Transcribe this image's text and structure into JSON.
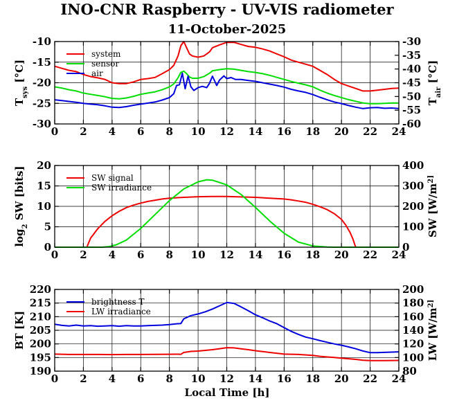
{
  "title": "INO-CNR Raspberry - UV-VIS radiometer",
  "subtitle": "11-October-2025",
  "xlabel": "Local Time [h]",
  "colors": {
    "red": "#ee0000",
    "green": "#00dd00",
    "blue": "#0000dd",
    "axis": "#000000"
  },
  "panels": [
    {
      "ylabel_left": "T_sys [°C]",
      "ylabel_right": "T_air [°C]",
      "legend": [
        "system",
        "sensor",
        "air"
      ]
    },
    {
      "ylabel_left": "log_2 SW [bits]",
      "ylabel_right": "SW [W/m^2]",
      "legend": [
        "SW signal",
        "SW irradiance"
      ]
    },
    {
      "ylabel_left": "BT [K]",
      "ylabel_right": "LW [W/m^2]",
      "legend": [
        "brightness T",
        "LW irradiance"
      ]
    }
  ],
  "chart_data": [
    {
      "type": "line",
      "xlim": [
        0,
        24
      ],
      "x_ticks": [
        0,
        2,
        4,
        6,
        8,
        10,
        12,
        14,
        16,
        18,
        20,
        22,
        24
      ],
      "ylim_left": [
        -30,
        -10
      ],
      "yticks_left": [
        -30,
        -25,
        -20,
        -15,
        -10
      ],
      "ylim_right": [
        -60,
        -30
      ],
      "yticks_right": [
        -60,
        -55,
        -50,
        -45,
        -40,
        -35,
        -30
      ],
      "grid": true,
      "legend_position": "top-left",
      "series": [
        {
          "name": "system",
          "axis": "left",
          "color": "#ee0000",
          "x": [
            0,
            0.5,
            1,
            1.5,
            2,
            2.5,
            3,
            3.5,
            4,
            4.5,
            5,
            5.5,
            6,
            6.5,
            7,
            7.5,
            8,
            8.3,
            8.6,
            8.8,
            9.0,
            9.2,
            9.4,
            9.6,
            10,
            10.4,
            10.8,
            11,
            11.5,
            12,
            12.5,
            13,
            13.5,
            14,
            14.5,
            15,
            15.5,
            16,
            16.5,
            17,
            17.5,
            18,
            18.5,
            19,
            19.5,
            20,
            20.5,
            21,
            21.5,
            22,
            22.5,
            23,
            23.5,
            24
          ],
          "y": [
            -16,
            -16.5,
            -17,
            -17.3,
            -18,
            -18.5,
            -18.8,
            -19.2,
            -20,
            -20.2,
            -20.2,
            -19.8,
            -19.2,
            -19,
            -18.7,
            -17.8,
            -16.8,
            -15.8,
            -13.5,
            -11,
            -10,
            -11.5,
            -13,
            -13.5,
            -13.8,
            -13.5,
            -12.5,
            -11.5,
            -10.8,
            -10.2,
            -10.2,
            -10.7,
            -11.2,
            -11.4,
            -11.8,
            -12.3,
            -13,
            -13.7,
            -14.5,
            -15,
            -15.5,
            -16,
            -17,
            -18,
            -19.2,
            -20.2,
            -20.8,
            -21.4,
            -22,
            -22,
            -21.8,
            -21.6,
            -21.4,
            -21.3
          ]
        },
        {
          "name": "sensor",
          "axis": "left",
          "color": "#00dd00",
          "x": [
            0,
            0.5,
            1,
            1.5,
            2,
            2.5,
            3,
            3.5,
            4,
            4.5,
            5,
            5.5,
            6,
            6.5,
            7,
            7.5,
            8,
            8.3,
            8.6,
            8.8,
            9.0,
            9.2,
            9.4,
            9.6,
            10,
            10.4,
            10.8,
            11,
            11.5,
            12,
            12.5,
            13,
            13.5,
            14,
            14.5,
            15,
            15.5,
            16,
            16.5,
            17,
            17.5,
            18,
            18.5,
            19,
            19.5,
            20,
            20.5,
            21,
            21.5,
            22,
            22.5,
            23,
            23.5,
            24
          ],
          "y": [
            -21,
            -21.3,
            -21.7,
            -22,
            -22.5,
            -22.8,
            -23.1,
            -23.4,
            -23.8,
            -23.9,
            -23.7,
            -23.3,
            -22.8,
            -22.5,
            -22.2,
            -21.7,
            -21,
            -20.3,
            -18.8,
            -17.5,
            -17.2,
            -17.8,
            -18.6,
            -18.9,
            -18.9,
            -18.5,
            -17.7,
            -17.1,
            -16.8,
            -16.6,
            -16.7,
            -17,
            -17.3,
            -17.5,
            -17.8,
            -18.2,
            -18.7,
            -19.2,
            -19.7,
            -20.1,
            -20.5,
            -21,
            -21.8,
            -22.5,
            -23.1,
            -23.6,
            -24.1,
            -24.5,
            -24.9,
            -25.1,
            -25.1,
            -25,
            -24.9,
            -24.9
          ]
        },
        {
          "name": "air",
          "axis": "right",
          "color": "#0000dd",
          "x": [
            0,
            0.5,
            1,
            1.5,
            2,
            2.5,
            3,
            3.5,
            4,
            4.5,
            5,
            5.5,
            6,
            6.5,
            7,
            7.5,
            8,
            8.3,
            8.5,
            8.7,
            8.9,
            9.1,
            9.3,
            9.5,
            9.7,
            10,
            10.3,
            10.6,
            10.8,
            11,
            11.3,
            11.5,
            11.8,
            12,
            12.3,
            12.6,
            13,
            13.5,
            14,
            14.5,
            15,
            15.5,
            16,
            16.5,
            17,
            17.5,
            18,
            18.5,
            19,
            19.5,
            20,
            20.5,
            21,
            21.5,
            22,
            22.5,
            23,
            23.5,
            24
          ],
          "y": [
            -51.2,
            -51.5,
            -51.8,
            -52.1,
            -52.5,
            -52.8,
            -53,
            -53.4,
            -53.9,
            -54,
            -53.7,
            -53.2,
            -52.8,
            -52.4,
            -52,
            -51.3,
            -50.4,
            -49,
            -46,
            -45.7,
            -41.5,
            -47.2,
            -42.6,
            -46.5,
            -47.8,
            -46.8,
            -46.3,
            -46.8,
            -45.2,
            -42.6,
            -46,
            -44,
            -42.5,
            -43.5,
            -43.1,
            -43.8,
            -43.8,
            -44.2,
            -44.5,
            -45,
            -45.5,
            -46,
            -46.6,
            -47.4,
            -48,
            -48.5,
            -49.3,
            -50.3,
            -51.2,
            -52,
            -52.6,
            -53.3,
            -53.9,
            -54.4,
            -54.1,
            -54,
            -54.3,
            -54.2,
            -54.4
          ]
        }
      ]
    },
    {
      "type": "line",
      "xlim": [
        0,
        24
      ],
      "x_ticks": [
        0,
        2,
        4,
        6,
        8,
        10,
        12,
        14,
        16,
        18,
        20,
        22,
        24
      ],
      "ylim_left": [
        0,
        20
      ],
      "yticks_left": [
        0,
        5,
        10,
        15,
        20
      ],
      "ylim_right": [
        0,
        400
      ],
      "yticks_right": [
        0,
        100,
        200,
        300,
        400
      ],
      "grid": true,
      "legend_position": "top-left",
      "series": [
        {
          "name": "SW signal",
          "axis": "left",
          "color": "#ee0000",
          "x": [
            0,
            2.25,
            2.3,
            2.5,
            3,
            3.5,
            4,
            4.5,
            5,
            5.5,
            6,
            6.5,
            7,
            7.5,
            8,
            9,
            10,
            11,
            12,
            13,
            14,
            15,
            16,
            16.5,
            17,
            17.5,
            18,
            18.5,
            19,
            19.5,
            20,
            20.3,
            20.6,
            20.8,
            20.95,
            21,
            24
          ],
          "y": [
            0,
            0,
            0.5,
            2.2,
            4.5,
            6.3,
            7.7,
            8.8,
            9.7,
            10.3,
            10.8,
            11.2,
            11.5,
            11.8,
            12,
            12.2,
            12.35,
            12.4,
            12.4,
            12.3,
            12.2,
            12,
            11.8,
            11.6,
            11.3,
            11,
            10.5,
            9.9,
            9.2,
            8.2,
            6.8,
            5.4,
            3.6,
            2,
            0.4,
            0,
            0
          ]
        },
        {
          "name": "SW irradiance",
          "axis": "right",
          "color": "#00dd00",
          "x": [
            0,
            3.3,
            3.8,
            4.3,
            5,
            6,
            7,
            8,
            9,
            10,
            10.6,
            11,
            12,
            13,
            14,
            15,
            16,
            17,
            18,
            19,
            19.5,
            20,
            24
          ],
          "y": [
            0,
            0,
            3,
            12,
            35,
            92,
            160,
            228,
            285,
            320,
            330,
            328,
            305,
            258,
            195,
            128,
            68,
            25,
            6,
            1,
            0,
            0,
            0
          ]
        }
      ]
    },
    {
      "type": "line",
      "xlim": [
        0,
        24
      ],
      "x_ticks": [
        0,
        2,
        4,
        6,
        8,
        10,
        12,
        14,
        16,
        18,
        20,
        22,
        24
      ],
      "ylim_left": [
        190,
        220
      ],
      "yticks_left": [
        190,
        195,
        200,
        205,
        210,
        215,
        220
      ],
      "ylim_right": [
        80,
        200
      ],
      "yticks_right": [
        80,
        100,
        120,
        140,
        160,
        180,
        200
      ],
      "grid": true,
      "legend_position": "top-left",
      "series": [
        {
          "name": "brightness T",
          "axis": "left",
          "color": "#0000dd",
          "x": [
            0,
            0.5,
            1,
            1.5,
            2,
            2.5,
            3,
            3.5,
            4,
            4.5,
            5,
            5.5,
            6,
            6.5,
            7,
            7.5,
            8,
            8.5,
            8.8,
            9.0,
            9.5,
            10,
            10.5,
            11,
            11.5,
            12,
            12.5,
            13,
            13.5,
            14,
            14.5,
            15,
            15.5,
            16,
            16.5,
            17,
            17.5,
            18,
            18.5,
            19,
            19.5,
            20,
            20.5,
            21,
            21.5,
            22,
            22.5,
            23,
            23.5,
            24
          ],
          "y": [
            207.2,
            206.8,
            206.6,
            206.9,
            206.6,
            206.7,
            206.5,
            206.6,
            206.7,
            206.5,
            206.7,
            206.6,
            206.6,
            206.7,
            206.8,
            206.9,
            207.1,
            207.4,
            207.5,
            209.2,
            210.4,
            211,
            211.8,
            212.8,
            214,
            215.2,
            214.9,
            213.6,
            212.2,
            210.7,
            209.6,
            208.4,
            207.4,
            206,
            204.6,
            203.5,
            202.5,
            201.9,
            201.2,
            200.6,
            200,
            199.5,
            198.9,
            198.2,
            197.4,
            196.8,
            196.8,
            196.9,
            197,
            197.1
          ]
        },
        {
          "name": "LW irradiance",
          "axis": "right",
          "color": "#ee0000",
          "x": [
            0,
            1,
            2,
            3,
            4,
            5,
            6,
            7,
            8,
            8.6,
            8.8,
            9.0,
            9.5,
            10,
            10.5,
            11,
            11.5,
            12,
            12.5,
            13,
            13.5,
            14,
            14.5,
            15,
            16,
            17,
            18,
            18.5,
            19,
            19.5,
            20,
            20.5,
            21,
            21.5,
            22,
            23,
            24
          ],
          "y": [
            105,
            104.5,
            104.5,
            104.5,
            104.3,
            104.5,
            104.5,
            104.6,
            104.8,
            104.9,
            104.7,
            107.5,
            109,
            109.5,
            110.5,
            111.5,
            113,
            114.5,
            114.2,
            112.8,
            111.5,
            110,
            108.8,
            107.5,
            105,
            104.5,
            103.2,
            101.8,
            100.8,
            100,
            99,
            98.2,
            97.3,
            96,
            95.6,
            95.6,
            95.8
          ]
        }
      ]
    }
  ]
}
